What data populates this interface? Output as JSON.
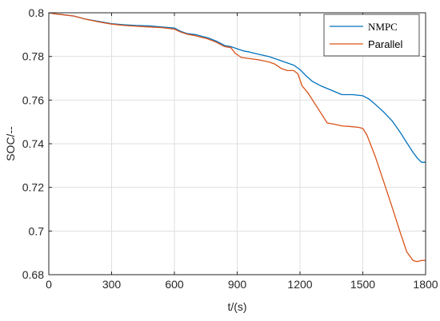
{
  "chart_data": {
    "type": "line",
    "xlabel": "t/(s)",
    "ylabel": "SOC/--",
    "xlim": [
      0,
      1800
    ],
    "ylim": [
      0.68,
      0.8
    ],
    "xticks": [
      0,
      300,
      600,
      900,
      1200,
      1500,
      1800
    ],
    "yticks": [
      0.68,
      0.7,
      0.72,
      0.74,
      0.76,
      0.78,
      0.8
    ],
    "xtick_labels": [
      "0",
      "300",
      "600",
      "900",
      "1200",
      "1500",
      "1800"
    ],
    "ytick_labels": [
      "0.68",
      "0.7",
      "0.72",
      "0.74",
      "0.76",
      "0.78",
      "0.8"
    ],
    "grid": true,
    "legend_position": "top-right",
    "series": [
      {
        "name": "NMPC",
        "color": "#0072BD",
        "x": [
          0,
          30,
          60,
          120,
          180,
          240,
          300,
          360,
          420,
          480,
          540,
          600,
          630,
          660,
          700,
          760,
          800,
          840,
          870,
          900,
          930,
          960,
          1000,
          1050,
          1080,
          1110,
          1140,
          1170,
          1200,
          1230,
          1260,
          1300,
          1350,
          1400,
          1450,
          1500,
          1530,
          1560,
          1600,
          1640,
          1680,
          1710,
          1740,
          1760,
          1780,
          1800
        ],
        "y": [
          0.8,
          0.7995,
          0.7992,
          0.7985,
          0.797,
          0.796,
          0.795,
          0.7945,
          0.7942,
          0.794,
          0.7935,
          0.793,
          0.7915,
          0.7905,
          0.79,
          0.7885,
          0.787,
          0.785,
          0.7845,
          0.7835,
          0.7825,
          0.782,
          0.781,
          0.78,
          0.779,
          0.778,
          0.777,
          0.776,
          0.774,
          0.771,
          0.7685,
          0.7665,
          0.7645,
          0.7625,
          0.7625,
          0.762,
          0.7605,
          0.758,
          0.7545,
          0.7505,
          0.745,
          0.7405,
          0.736,
          0.7335,
          0.7315,
          0.7315
        ]
      },
      {
        "name": "Parallel",
        "color": "#D95319",
        "x": [
          0,
          30,
          60,
          120,
          180,
          240,
          300,
          360,
          420,
          480,
          540,
          600,
          630,
          660,
          700,
          760,
          800,
          840,
          870,
          890,
          920,
          960,
          1000,
          1050,
          1080,
          1110,
          1140,
          1170,
          1190,
          1210,
          1240,
          1270,
          1300,
          1330,
          1360,
          1400,
          1450,
          1480,
          1500,
          1520,
          1560,
          1600,
          1640,
          1680,
          1710,
          1740,
          1760,
          1780,
          1800
        ],
        "y": [
          0.8,
          0.7995,
          0.7992,
          0.7985,
          0.797,
          0.7958,
          0.7948,
          0.7942,
          0.7938,
          0.7935,
          0.7932,
          0.7925,
          0.7912,
          0.7902,
          0.7895,
          0.788,
          0.7865,
          0.7845,
          0.784,
          0.7815,
          0.7795,
          0.779,
          0.7785,
          0.7775,
          0.7765,
          0.7745,
          0.7735,
          0.7735,
          0.772,
          0.7665,
          0.763,
          0.7585,
          0.754,
          0.7495,
          0.749,
          0.7482,
          0.7478,
          0.7475,
          0.747,
          0.744,
          0.734,
          0.7225,
          0.711,
          0.699,
          0.6905,
          0.6865,
          0.686,
          0.6865,
          0.6865
        ]
      }
    ]
  }
}
